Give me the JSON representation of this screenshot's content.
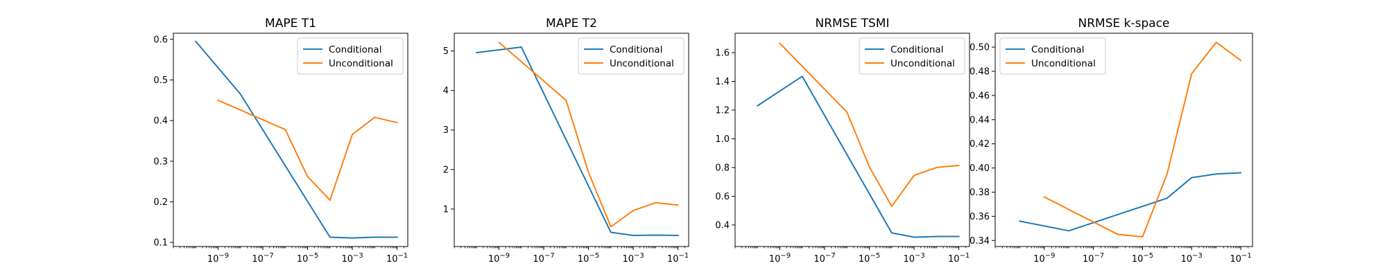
{
  "chart_data": [
    {
      "type": "line",
      "title": "MAPE T1",
      "xscale": "log",
      "xlim": [
        1e-11,
        0.3
      ],
      "ylim": [
        0.09,
        0.615
      ],
      "x_ticks": [
        1e-09,
        1e-07,
        1e-05,
        0.001,
        0.1
      ],
      "y_ticks": [
        0.1,
        0.2,
        0.3,
        0.4,
        0.5,
        0.6
      ],
      "y_tick_labels": [
        "0.1",
        "0.2",
        "0.3",
        "0.4",
        "0.5",
        "0.6"
      ],
      "legend": "top-right",
      "series": [
        {
          "name": "Conditional",
          "color": "#1f77b4",
          "x": [
            1e-10,
            1e-08,
            0.0001,
            0.001,
            0.01,
            0.1
          ],
          "y": [
            0.595,
            0.465,
            0.113,
            0.111,
            0.113,
            0.113
          ]
        },
        {
          "name": "Unconditional",
          "color": "#ff7f0e",
          "x": [
            1e-09,
            1e-06,
            1e-05,
            0.0001,
            0.001,
            0.01,
            0.1
          ],
          "y": [
            0.45,
            0.378,
            0.262,
            0.204,
            0.366,
            0.408,
            0.395
          ]
        }
      ]
    },
    {
      "type": "line",
      "title": "MAPE T2",
      "xscale": "log",
      "xlim": [
        1e-11,
        0.3
      ],
      "ylim": [
        0.05,
        5.45
      ],
      "x_ticks": [
        1e-09,
        1e-07,
        1e-05,
        0.001,
        0.1
      ],
      "y_ticks": [
        1,
        2,
        3,
        4,
        5
      ],
      "y_tick_labels": [
        "1",
        "2",
        "3",
        "4",
        "5"
      ],
      "legend": "top-right",
      "series": [
        {
          "name": "Conditional",
          "color": "#1f77b4",
          "x": [
            1e-10,
            1e-08,
            0.0001,
            0.001,
            0.01,
            0.1
          ],
          "y": [
            4.96,
            5.1,
            0.41,
            0.33,
            0.34,
            0.33
          ]
        },
        {
          "name": "Unconditional",
          "color": "#ff7f0e",
          "x": [
            1e-09,
            1e-06,
            1e-05,
            0.0001,
            0.001,
            0.01,
            0.1
          ],
          "y": [
            5.22,
            3.75,
            1.93,
            0.55,
            0.96,
            1.16,
            1.1
          ]
        }
      ]
    },
    {
      "type": "line",
      "title": "NRMSE TSMI",
      "xscale": "log",
      "xlim": [
        1e-11,
        0.3
      ],
      "ylim": [
        0.25,
        1.735
      ],
      "x_ticks": [
        1e-09,
        1e-07,
        1e-05,
        0.001,
        0.1
      ],
      "y_ticks": [
        0.4,
        0.6,
        0.8,
        1.0,
        1.2,
        1.4,
        1.6
      ],
      "y_tick_labels": [
        "0.4",
        "0.6",
        "0.8",
        "1.0",
        "1.2",
        "1.4",
        "1.6"
      ],
      "legend": "top-right",
      "series": [
        {
          "name": "Conditional",
          "color": "#1f77b4",
          "x": [
            1e-10,
            1e-08,
            0.0001,
            0.001,
            0.01,
            0.1
          ],
          "y": [
            1.23,
            1.435,
            0.345,
            0.315,
            0.32,
            0.32
          ]
        },
        {
          "name": "Unconditional",
          "color": "#ff7f0e",
          "x": [
            1e-09,
            1e-06,
            1e-05,
            0.0001,
            0.001,
            0.01,
            0.1
          ],
          "y": [
            1.665,
            1.185,
            0.805,
            0.53,
            0.745,
            0.8,
            0.815
          ]
        }
      ]
    },
    {
      "type": "line",
      "title": "NRMSE k-space",
      "xscale": "log",
      "xlim": [
        1e-11,
        0.3
      ],
      "ylim": [
        0.335,
        0.5115
      ],
      "x_ticks": [
        1e-09,
        1e-07,
        1e-05,
        0.001,
        0.1
      ],
      "y_ticks": [
        0.34,
        0.36,
        0.38,
        0.4,
        0.42,
        0.44,
        0.46,
        0.48,
        0.5
      ],
      "y_tick_labels": [
        "0.34",
        "0.36",
        "0.38",
        "0.40",
        "0.42",
        "0.44",
        "0.46",
        "0.48",
        "0.50"
      ],
      "legend": "top-left",
      "series": [
        {
          "name": "Conditional",
          "color": "#1f77b4",
          "x": [
            1e-10,
            1e-08,
            0.0001,
            0.001,
            0.01,
            0.1
          ],
          "y": [
            0.356,
            0.348,
            0.375,
            0.392,
            0.395,
            0.396
          ]
        },
        {
          "name": "Unconditional",
          "color": "#ff7f0e",
          "x": [
            1e-09,
            1e-06,
            1e-05,
            0.0001,
            0.001,
            0.01,
            0.1
          ],
          "y": [
            0.376,
            0.345,
            0.343,
            0.395,
            0.478,
            0.504,
            0.489
          ]
        }
      ]
    }
  ]
}
